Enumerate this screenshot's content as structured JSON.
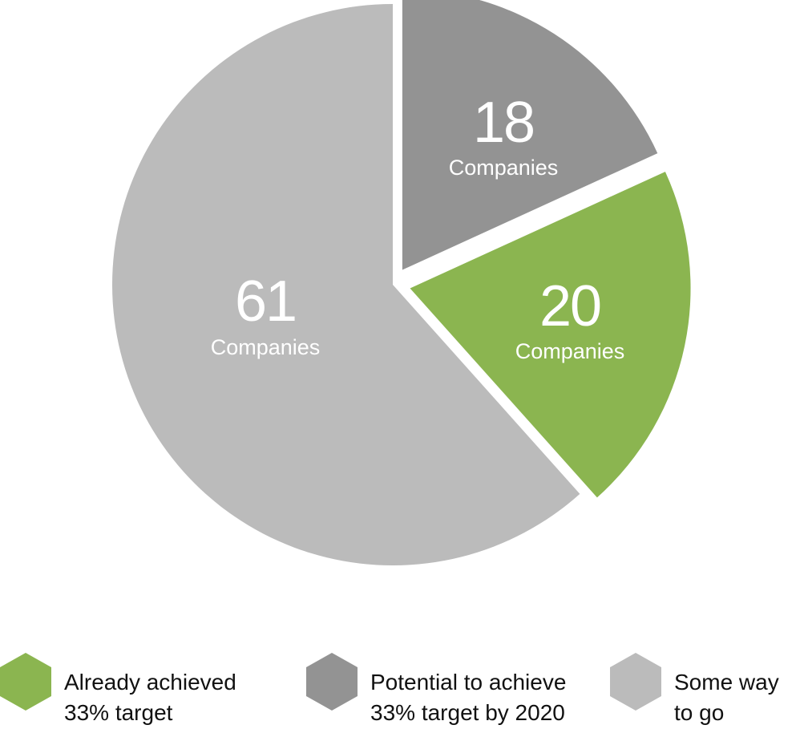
{
  "chart_data": {
    "type": "pie",
    "unit_label": "Companies",
    "slices": [
      {
        "key": "potential",
        "value": 18,
        "value_label": "18",
        "unit_label": "Companies",
        "color": "#939393",
        "exploded": true
      },
      {
        "key": "achieved",
        "value": 20,
        "value_label": "20",
        "unit_label": "Companies",
        "color": "#8bb550",
        "exploded": true
      },
      {
        "key": "someway",
        "value": 61,
        "value_label": "61",
        "unit_label": "Companies",
        "color": "#bbbbbb",
        "exploded": false
      }
    ],
    "legend": [
      {
        "key": "achieved",
        "line1": "Already achieved",
        "line2": "33% target",
        "color": "#8bb550"
      },
      {
        "key": "potential",
        "line1": "Potential to achieve",
        "line2": "33% target by 2020",
        "color": "#939393"
      },
      {
        "key": "someway",
        "line1": "Some way",
        "line2": "to go",
        "color": "#bbbbbb"
      }
    ]
  }
}
